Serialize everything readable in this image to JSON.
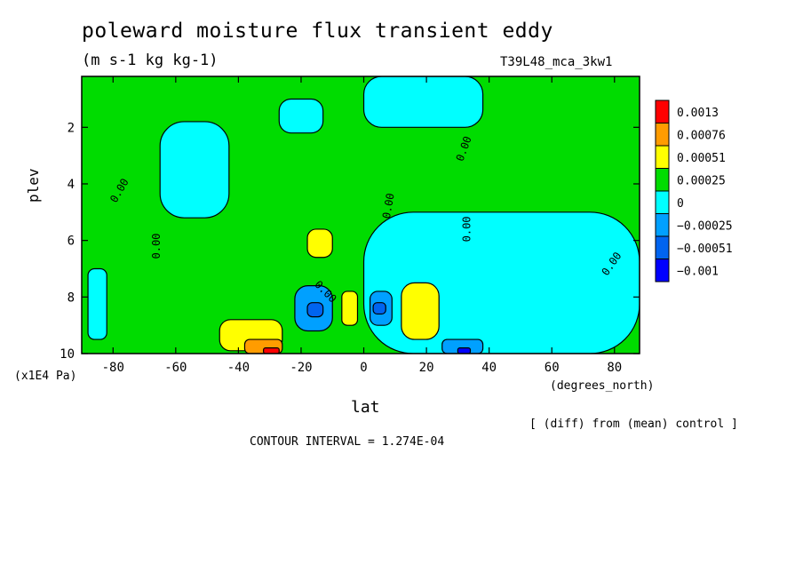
{
  "chart_data": {
    "type": "heatmap",
    "title": "poleward moisture flux transient eddy",
    "subtitle": "(m s-1 kg kg-1)",
    "run_name": "T39L48_mca_3kw1",
    "xlabel": "lat",
    "x_units": "(degrees_north)",
    "ylabel": "plev",
    "y_units": "(x1E4 Pa)",
    "xlim": [
      -90,
      88
    ],
    "ylim": [
      10,
      0.2
    ],
    "x_ticks": [
      -80,
      -60,
      -40,
      -20,
      0,
      20,
      40,
      60,
      80
    ],
    "x_tick_labels": [
      "-80",
      "-60",
      "-40",
      "-20",
      "0",
      "20",
      "40",
      "60",
      "80"
    ],
    "y_ticks": [
      2,
      4,
      6,
      8,
      10
    ],
    "y_tick_labels": [
      "2",
      "4",
      "6",
      "8",
      "10"
    ],
    "note": "[ (diff) from (mean) control ]",
    "contour_interval_text": "CONTOUR INTERVAL = 1.274E-04",
    "contour_label": "0.00",
    "legend": {
      "placement": "right",
      "levels": [
        {
          "label": "0.0013",
          "color": "#ff0000"
        },
        {
          "label": "0.00076",
          "color": "#ff9c00"
        },
        {
          "label": "0.00051",
          "color": "#ffff00"
        },
        {
          "label": "0.00025",
          "color": "#00dc00"
        },
        {
          "label": "0",
          "color": "#00ffff"
        },
        {
          "label": "−0.00025",
          "color": "#00a0ff"
        },
        {
          "label": "−0.00051",
          "color": "#0064f0"
        },
        {
          "label": "−0.001",
          "color": "#0000ff"
        }
      ]
    },
    "background_color": "#00dc00",
    "regions": [
      {
        "level": "0",
        "lat": [
          -88,
          -82
        ],
        "plev": [
          7.0,
          9.5
        ]
      },
      {
        "level": "0",
        "lat": [
          -65,
          -43
        ],
        "plev": [
          1.8,
          5.2
        ]
      },
      {
        "level": "0",
        "lat": [
          -27,
          -13
        ],
        "plev": [
          1.0,
          2.2
        ]
      },
      {
        "level": "0",
        "lat": [
          0,
          38
        ],
        "plev": [
          0.2,
          2.0
        ]
      },
      {
        "level": "0",
        "lat": [
          0,
          88
        ],
        "plev": [
          5.0,
          10.0
        ]
      },
      {
        "level": "0.00051",
        "lat": [
          -46,
          -26
        ],
        "plev": [
          8.8,
          9.9
        ]
      },
      {
        "level": "0.00076",
        "lat": [
          -38,
          -26
        ],
        "plev": [
          9.5,
          10.0
        ]
      },
      {
        "level": "0.0013",
        "lat": [
          -32,
          -27
        ],
        "plev": [
          9.8,
          10.0
        ]
      },
      {
        "level": "0.00051",
        "lat": [
          -18,
          -10
        ],
        "plev": [
          5.6,
          6.6
        ]
      },
      {
        "level": "0.00051",
        "lat": [
          -7,
          -2
        ],
        "plev": [
          7.8,
          9.0
        ]
      },
      {
        "level": "0.00051",
        "lat": [
          12,
          24
        ],
        "plev": [
          7.5,
          9.5
        ]
      },
      {
        "level": "−0.00025",
        "lat": [
          -22,
          -10
        ],
        "plev": [
          7.6,
          9.2
        ]
      },
      {
        "level": "−0.00051",
        "lat": [
          -18,
          -13
        ],
        "plev": [
          8.2,
          8.7
        ]
      },
      {
        "level": "−0.00025",
        "lat": [
          2,
          9
        ],
        "plev": [
          7.8,
          9.0
        ]
      },
      {
        "level": "−0.00051",
        "lat": [
          3,
          7
        ],
        "plev": [
          8.2,
          8.6
        ]
      },
      {
        "level": "−0.00025",
        "lat": [
          25,
          38
        ],
        "plev": [
          9.5,
          10.0
        ]
      },
      {
        "level": "−0.001",
        "lat": [
          30,
          34
        ],
        "plev": [
          9.8,
          10.0
        ]
      }
    ]
  }
}
